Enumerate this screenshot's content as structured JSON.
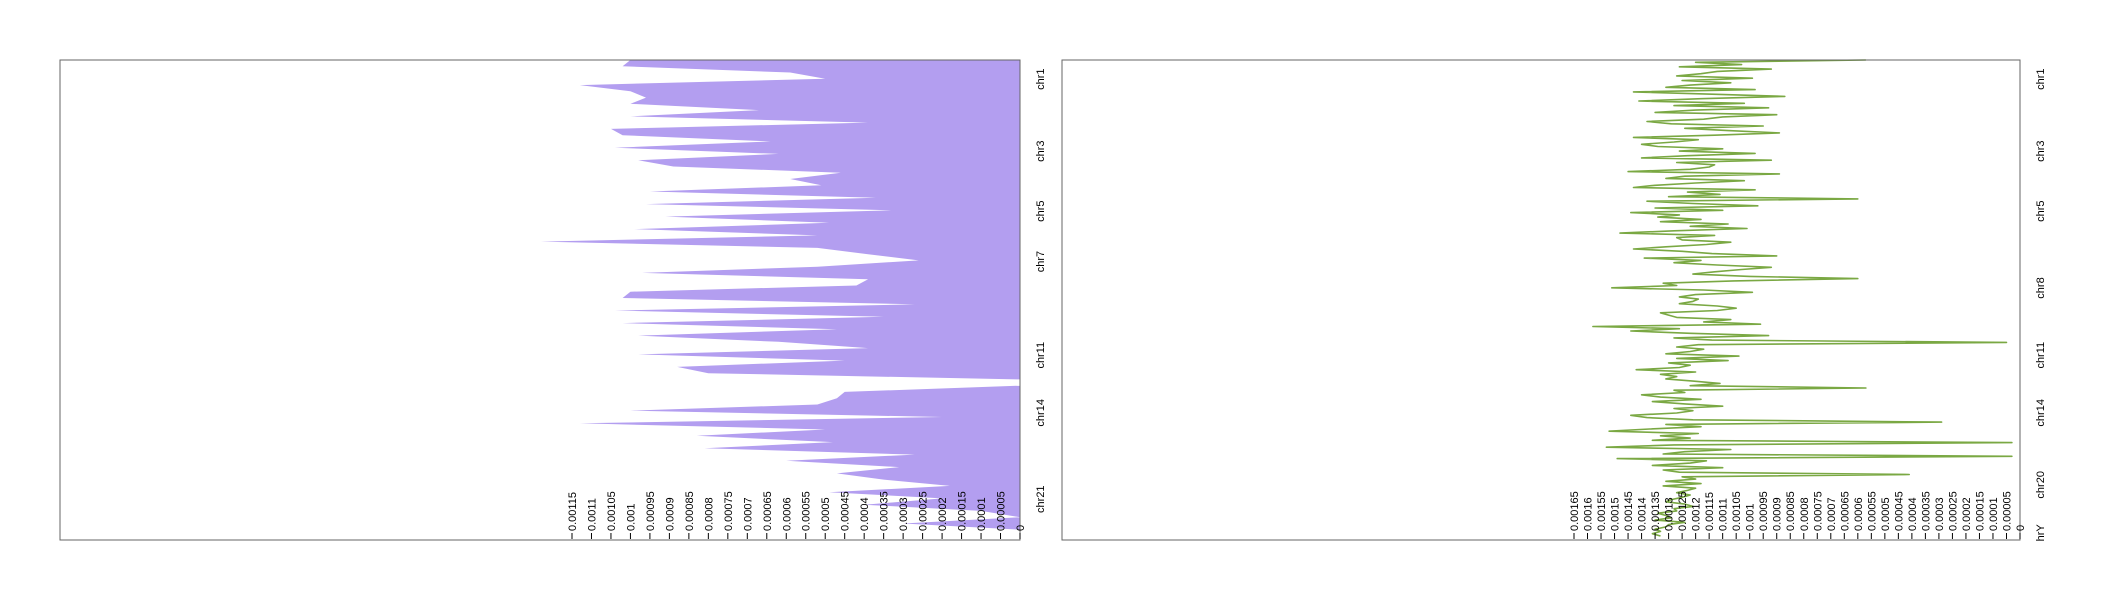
{
  "colors": {
    "area_fill": "#b39ef0",
    "line_stroke": "#7aa843",
    "frame": "#666666",
    "tick": "#000000"
  },
  "chart_data": [
    {
      "type": "area",
      "orientation": "values-horizontal, axis on left, chromosome position downward",
      "xlim": [
        0,
        0.00115
      ],
      "y_tick_labels": [
        "0.00115",
        "0.0011",
        "0.00105",
        "0.001",
        "0.00095",
        "0.0009",
        "0.00085",
        "0.0008",
        "0.00075",
        "0.0007",
        "0.00065",
        "0.0006",
        "0.00055",
        "0.0005",
        "0.00045",
        "0.0004",
        "0.00035",
        "0.0003",
        "0.00025",
        "0.0002",
        "0.00015",
        "0.0001",
        "0.00005",
        "0"
      ],
      "y_tick_values": [
        0.00115,
        0.0011,
        0.00105,
        0.001,
        0.00095,
        0.0009,
        0.00085,
        0.0008,
        0.00075,
        0.0007,
        0.00065,
        0.0006,
        0.00055,
        0.0005,
        0.00045,
        0.0004,
        0.00035,
        0.0003,
        0.00025,
        0.0002,
        0.00015,
        0.0001,
        5e-05,
        0
      ],
      "chrom_labels": [
        {
          "label": "chr1",
          "pos": 0.04
        },
        {
          "label": "chr3",
          "pos": 0.19
        },
        {
          "label": "chr5",
          "pos": 0.315
        },
        {
          "label": "chr7",
          "pos": 0.42
        },
        {
          "label": "chr11",
          "pos": 0.615
        },
        {
          "label": "chr14",
          "pos": 0.735
        },
        {
          "label": "chr21",
          "pos": 0.915
        }
      ],
      "values": [
        0.001,
        0.00102,
        0.00059,
        0.0005,
        0.00113,
        0.001,
        0.00096,
        0.001,
        0.00067,
        0.001,
        0.00039,
        0.00105,
        0.00102,
        0.00064,
        0.00104,
        0.00062,
        0.00098,
        0.00089,
        0.00046,
        0.00059,
        0.00051,
        0.00095,
        0.00037,
        0.00096,
        0.00033,
        0.00091,
        0.00049,
        0.00099,
        0.00052,
        0.00123,
        0.00052,
        0.00039,
        0.00026,
        0.00052,
        0.00097,
        0.00039,
        0.00042,
        0.001,
        0.00102,
        0.00027,
        0.00104,
        0.00035,
        0.00102,
        0.00047,
        0.00098,
        0.00062,
        0.00039,
        0.00098,
        0.00045,
        0.00088,
        0.0008,
        0.0,
        0.0,
        0.00045,
        0.00047,
        0.00052,
        0.001,
        0.0002,
        0.00113,
        0.0005,
        0.00083,
        0.00048,
        0.00081,
        0.00027,
        0.0006,
        0.00031,
        0.00047,
        0.00035,
        0.00018,
        0.00049,
        0.0002,
        0.0004,
        0.0001,
        0.0,
        0.0003,
        0.0,
        0.0
      ]
    },
    {
      "type": "line",
      "orientation": "values-horizontal, axis on left, chromosome position downward",
      "xlim": [
        0,
        0.00165
      ],
      "y_tick_labels": [
        "0.00165",
        "0.0016",
        "0.00155",
        "0.0015",
        "0.00145",
        "0.0014",
        "0.00135",
        "0.0013",
        "0.00125",
        "0.0012",
        "0.00115",
        "0.0011",
        "0.00105",
        "0.001",
        "0.00095",
        "0.0009",
        "0.00085",
        "0.0008",
        "0.00075",
        "0.0007",
        "0.00065",
        "0.0006",
        "0.00055",
        "0.0005",
        "0.00045",
        "0.0004",
        "0.00035",
        "0.0003",
        "0.00025",
        "0.0002",
        "0.00015",
        "0.0001",
        "0.00005",
        "0"
      ],
      "y_tick_values": [
        0.00165,
        0.0016,
        0.00155,
        0.0015,
        0.00145,
        0.0014,
        0.00135,
        0.0013,
        0.00125,
        0.0012,
        0.00115,
        0.0011,
        0.00105,
        0.001,
        0.00095,
        0.0009,
        0.00085,
        0.0008,
        0.00075,
        0.0007,
        0.00065,
        0.0006,
        0.00055,
        0.0005,
        0.00045,
        0.0004,
        0.00035,
        0.0003,
        0.00025,
        0.0002,
        0.00015,
        0.0001,
        5e-05,
        0
      ],
      "chrom_labels": [
        {
          "label": "chr1",
          "pos": 0.04
        },
        {
          "label": "chr3",
          "pos": 0.19
        },
        {
          "label": "chr5",
          "pos": 0.315
        },
        {
          "label": "chr8",
          "pos": 0.475
        },
        {
          "label": "chr11",
          "pos": 0.615
        },
        {
          "label": "chr14",
          "pos": 0.735
        },
        {
          "label": "chr20",
          "pos": 0.885
        },
        {
          "label": "hrY",
          "pos": 0.985
        }
      ],
      "values": [
        0.00057,
        0.0012,
        0.00103,
        0.00126,
        0.00092,
        0.00112,
        0.00118,
        0.00127,
        0.00099,
        0.00125,
        0.00107,
        0.00122,
        0.00131,
        0.00098,
        0.00143,
        0.00114,
        0.00087,
        0.00118,
        0.00141,
        0.00102,
        0.00128,
        0.00093,
        0.0012,
        0.00135,
        0.0009,
        0.0011,
        0.00117,
        0.00138,
        0.00129,
        0.00095,
        0.00124,
        0.00108,
        0.00089,
        0.00113,
        0.00143,
        0.00119,
        0.00128,
        0.0014,
        0.00134,
        0.0011,
        0.00126,
        0.00098,
        0.00123,
        0.0014,
        0.00092,
        0.00127,
        0.00113,
        0.00115,
        0.00122,
        0.00145,
        0.00089,
        0.00124,
        0.00131,
        0.00102,
        0.0012,
        0.00135,
        0.00143,
        0.00098,
        0.00123,
        0.00111,
        0.0013,
        0.0006,
        0.00138,
        0.00121,
        0.00097,
        0.00135,
        0.0011,
        0.00144,
        0.00126,
        0.00134,
        0.00118,
        0.00133,
        0.00108,
        0.00122,
        0.00101,
        0.00128,
        0.00148,
        0.00113,
        0.00127,
        0.00125,
        0.00107,
        0.00116,
        0.00131,
        0.00143,
        0.00125,
        0.00114,
        0.0009,
        0.00139,
        0.00118,
        0.00128,
        0.00112,
        0.00092,
        0.00103,
        0.00113,
        0.00121,
        0.001,
        0.0006,
        0.00106,
        0.00132,
        0.00127,
        0.00151,
        0.00117,
        0.00099,
        0.0012,
        0.00126,
        0.00119,
        0.00121,
        0.00126,
        0.00112,
        0.00105,
        0.00112,
        0.00133,
        0.0013,
        0.00127,
        0.00107,
        0.00117,
        0.00096,
        0.00158,
        0.00126,
        0.00144,
        0.00122,
        0.00093,
        0.00128,
        0.00114,
        5e-05,
        0.00119,
        0.00127,
        0.00117,
        0.00122,
        0.00131,
        0.00104,
        0.00127,
        0.00108,
        0.0013,
        0.00122,
        0.00126,
        0.00142,
        0.0012,
        0.00133,
        0.00127,
        0.00131,
        0.00121,
        0.00111,
        0.00122,
        0.00057,
        0.00128,
        0.00124,
        0.0014,
        0.00133,
        0.00118,
        0.00136,
        0.00124,
        0.0011,
        0.00128,
        0.00121,
        0.00127,
        0.00144,
        0.00138,
        0.00121,
        0.00029,
        0.00131,
        0.00118,
        0.00137,
        0.00152,
        0.00119,
        0.00133,
        0.00122,
        0.00136,
        3e-05,
        0.00128,
        0.00153,
        0.00107,
        0.00124,
        0.00132,
        3e-05,
        0.00149,
        0.00116,
        0.00122,
        0.00136,
        0.0011,
        0.00132,
        0.00126,
        0.00041,
        0.00125,
        0.0012,
        0.00131,
        0.00118,
        0.00132,
        0.0012,
        0.00123,
        0.00127,
        0.00122,
        0.00125,
        0.00129,
        0.00131,
        0.00124,
        0.00121,
        0.00128,
        0.00127,
        0.00134,
        0.00131,
        0.00129,
        0.00135,
        0.00124,
        0.0013,
        0.00131,
        0.00135,
        0.00133,
        0.00136,
        0.00133
      ]
    }
  ]
}
